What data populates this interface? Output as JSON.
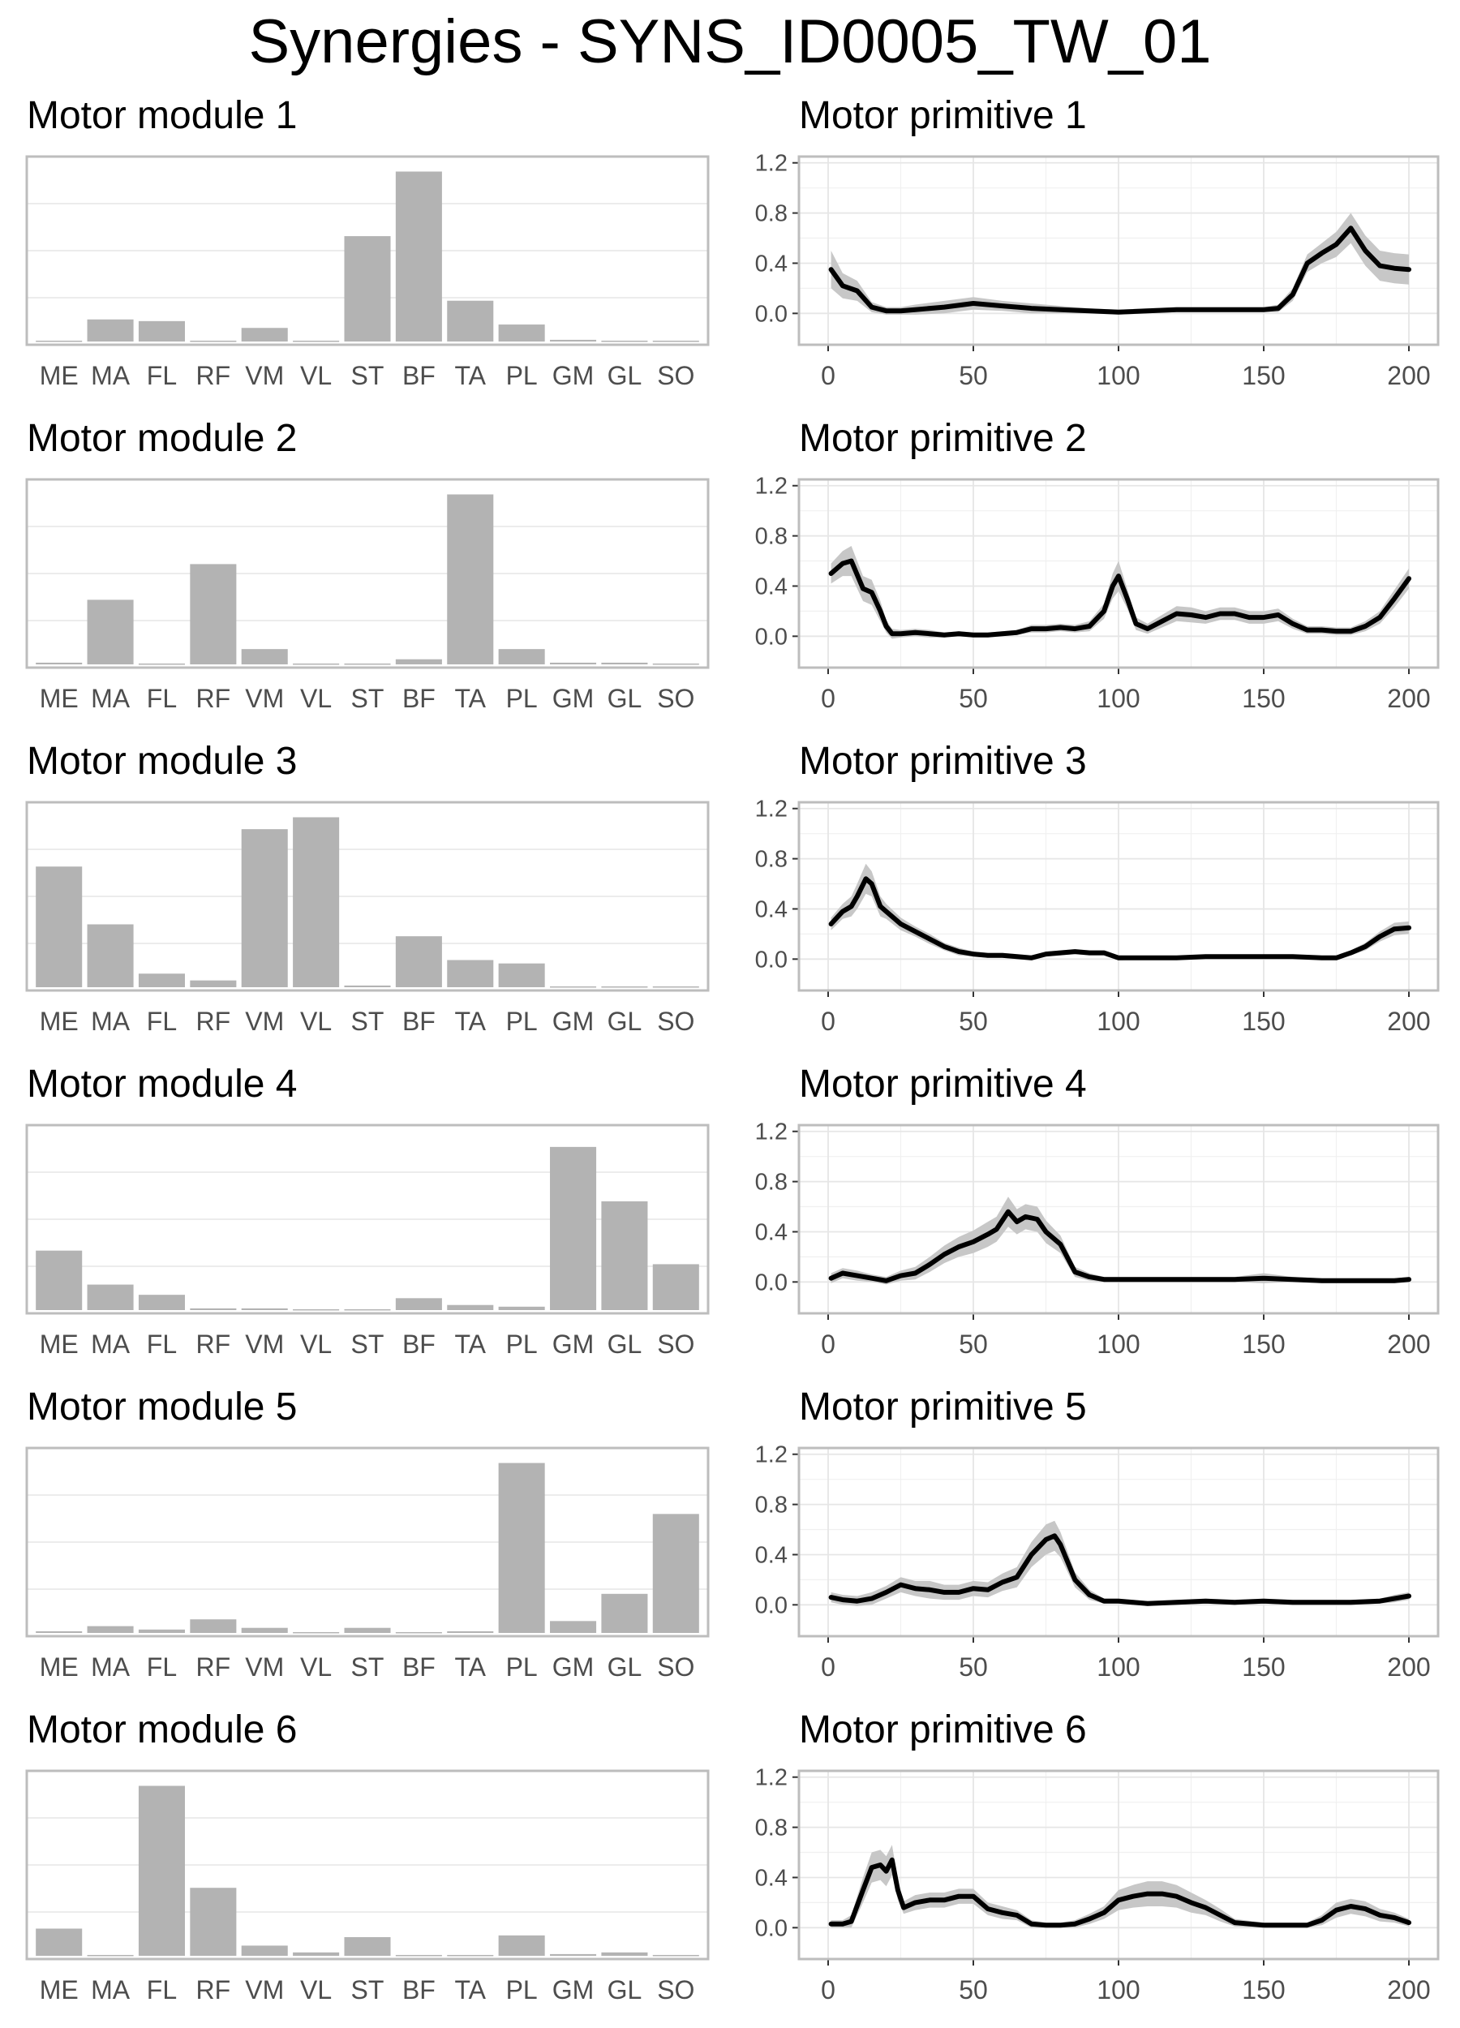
{
  "title": "Synergies - SYNS_ID0005_TW_01",
  "chart_data": [
    {
      "type": "bar",
      "title": "Motor module 1",
      "categories": [
        "ME",
        "MA",
        "FL",
        "RF",
        "VM",
        "VL",
        "ST",
        "BF",
        "TA",
        "PL",
        "GM",
        "GL",
        "SO"
      ],
      "values": [
        0.005,
        0.13,
        0.12,
        0.005,
        0.08,
        0.005,
        0.62,
        1.0,
        0.24,
        0.1,
        0.01,
        0.005,
        0.005
      ],
      "ylim": [
        0,
        1.05
      ]
    },
    {
      "type": "line",
      "title": "Motor primitive 1",
      "x": [
        1,
        5,
        10,
        15,
        20,
        25,
        30,
        40,
        50,
        60,
        70,
        80,
        90,
        100,
        110,
        120,
        130,
        140,
        150,
        155,
        160,
        165,
        170,
        175,
        180,
        185,
        190,
        195,
        200
      ],
      "mean": [
        0.35,
        0.22,
        0.18,
        0.05,
        0.02,
        0.02,
        0.03,
        0.05,
        0.08,
        0.06,
        0.04,
        0.03,
        0.02,
        0.01,
        0.02,
        0.03,
        0.03,
        0.03,
        0.03,
        0.04,
        0.15,
        0.4,
        0.48,
        0.55,
        0.68,
        0.5,
        0.38,
        0.36,
        0.35
      ],
      "sd": [
        0.15,
        0.1,
        0.08,
        0.04,
        0.03,
        0.03,
        0.04,
        0.05,
        0.05,
        0.04,
        0.04,
        0.03,
        0.02,
        0.02,
        0.02,
        0.02,
        0.02,
        0.02,
        0.02,
        0.03,
        0.05,
        0.07,
        0.08,
        0.1,
        0.12,
        0.12,
        0.12,
        0.12,
        0.12
      ],
      "ylim": [
        -0.25,
        1.25
      ],
      "yticks": [
        "0.0",
        "0.4",
        "0.8",
        "1.2"
      ],
      "xticks": [
        "0",
        "50",
        "100",
        "150",
        "200"
      ]
    },
    {
      "type": "bar",
      "title": "Motor module 2",
      "categories": [
        "ME",
        "MA",
        "FL",
        "RF",
        "VM",
        "VL",
        "ST",
        "BF",
        "TA",
        "PL",
        "GM",
        "GL",
        "SO"
      ],
      "values": [
        0.01,
        0.38,
        0.005,
        0.59,
        0.09,
        0.005,
        0.005,
        0.03,
        1.0,
        0.09,
        0.01,
        0.01,
        0.005
      ],
      "ylim": [
        0,
        1.05
      ]
    },
    {
      "type": "line",
      "title": "Motor primitive 2",
      "x": [
        1,
        5,
        8,
        12,
        15,
        18,
        20,
        22,
        25,
        30,
        35,
        40,
        45,
        50,
        55,
        60,
        65,
        70,
        75,
        80,
        85,
        90,
        95,
        98,
        100,
        103,
        106,
        110,
        115,
        120,
        125,
        130,
        135,
        140,
        145,
        150,
        155,
        160,
        165,
        170,
        175,
        180,
        185,
        190,
        195,
        200
      ],
      "mean": [
        0.5,
        0.58,
        0.6,
        0.38,
        0.35,
        0.2,
        0.08,
        0.02,
        0.02,
        0.03,
        0.02,
        0.01,
        0.02,
        0.01,
        0.01,
        0.02,
        0.03,
        0.06,
        0.06,
        0.07,
        0.06,
        0.08,
        0.2,
        0.4,
        0.48,
        0.3,
        0.1,
        0.06,
        0.12,
        0.18,
        0.17,
        0.15,
        0.18,
        0.18,
        0.15,
        0.15,
        0.17,
        0.1,
        0.05,
        0.05,
        0.04,
        0.04,
        0.08,
        0.15,
        0.3,
        0.46
      ],
      "sd": [
        0.08,
        0.1,
        0.12,
        0.1,
        0.1,
        0.08,
        0.05,
        0.04,
        0.03,
        0.03,
        0.03,
        0.02,
        0.02,
        0.02,
        0.02,
        0.02,
        0.02,
        0.03,
        0.03,
        0.03,
        0.03,
        0.04,
        0.06,
        0.1,
        0.12,
        0.08,
        0.05,
        0.04,
        0.05,
        0.06,
        0.06,
        0.05,
        0.05,
        0.05,
        0.05,
        0.05,
        0.05,
        0.04,
        0.03,
        0.03,
        0.03,
        0.03,
        0.04,
        0.05,
        0.07,
        0.08
      ],
      "ylim": [
        -0.25,
        1.25
      ],
      "yticks": [
        "0.0",
        "0.4",
        "0.8",
        "1.2"
      ],
      "xticks": [
        "0",
        "50",
        "100",
        "150",
        "200"
      ]
    },
    {
      "type": "bar",
      "title": "Motor module 3",
      "categories": [
        "ME",
        "MA",
        "FL",
        "RF",
        "VM",
        "VL",
        "ST",
        "BF",
        "TA",
        "PL",
        "GM",
        "GL",
        "SO"
      ],
      "values": [
        0.71,
        0.37,
        0.08,
        0.04,
        0.93,
        1.0,
        0.01,
        0.3,
        0.16,
        0.14,
        0.005,
        0.005,
        0.005
      ],
      "ylim": [
        0,
        1.05
      ]
    },
    {
      "type": "line",
      "title": "Motor primitive 3",
      "x": [
        1,
        5,
        8,
        10,
        13,
        15,
        18,
        20,
        25,
        30,
        35,
        40,
        45,
        50,
        55,
        60,
        65,
        70,
        75,
        80,
        85,
        90,
        95,
        100,
        110,
        120,
        130,
        140,
        150,
        160,
        170,
        175,
        180,
        185,
        190,
        195,
        200
      ],
      "mean": [
        0.28,
        0.38,
        0.42,
        0.5,
        0.64,
        0.6,
        0.42,
        0.38,
        0.28,
        0.22,
        0.16,
        0.1,
        0.06,
        0.04,
        0.03,
        0.03,
        0.02,
        0.01,
        0.04,
        0.05,
        0.06,
        0.05,
        0.05,
        0.01,
        0.01,
        0.01,
        0.02,
        0.02,
        0.02,
        0.02,
        0.01,
        0.01,
        0.05,
        0.1,
        0.18,
        0.24,
        0.25
      ],
      "sd": [
        0.05,
        0.06,
        0.08,
        0.1,
        0.12,
        0.1,
        0.08,
        0.06,
        0.05,
        0.04,
        0.04,
        0.03,
        0.03,
        0.02,
        0.02,
        0.02,
        0.02,
        0.02,
        0.02,
        0.02,
        0.02,
        0.02,
        0.02,
        0.02,
        0.01,
        0.01,
        0.01,
        0.01,
        0.01,
        0.01,
        0.01,
        0.01,
        0.02,
        0.03,
        0.04,
        0.05,
        0.05
      ],
      "ylim": [
        -0.25,
        1.25
      ],
      "yticks": [
        "0.0",
        "0.4",
        "0.8",
        "1.2"
      ],
      "xticks": [
        "0",
        "50",
        "100",
        "150",
        "200"
      ]
    },
    {
      "type": "bar",
      "title": "Motor module 4",
      "categories": [
        "ME",
        "MA",
        "FL",
        "RF",
        "VM",
        "VL",
        "ST",
        "BF",
        "TA",
        "PL",
        "GM",
        "GL",
        "SO"
      ],
      "values": [
        0.35,
        0.15,
        0.09,
        0.01,
        0.01,
        0.005,
        0.005,
        0.07,
        0.03,
        0.02,
        0.96,
        0.64,
        0.27
      ],
      "ylim": [
        0,
        1.05
      ]
    },
    {
      "type": "line",
      "title": "Motor primitive 4",
      "x": [
        1,
        5,
        10,
        15,
        20,
        25,
        30,
        35,
        40,
        45,
        50,
        55,
        58,
        62,
        65,
        68,
        72,
        75,
        80,
        85,
        90,
        95,
        100,
        110,
        120,
        130,
        140,
        150,
        160,
        170,
        180,
        190,
        195,
        200
      ],
      "mean": [
        0.03,
        0.07,
        0.05,
        0.03,
        0.01,
        0.05,
        0.07,
        0.14,
        0.22,
        0.28,
        0.32,
        0.38,
        0.42,
        0.56,
        0.48,
        0.52,
        0.5,
        0.4,
        0.3,
        0.08,
        0.04,
        0.02,
        0.02,
        0.02,
        0.02,
        0.02,
        0.02,
        0.03,
        0.02,
        0.01,
        0.01,
        0.01,
        0.01,
        0.02
      ],
      "sd": [
        0.04,
        0.04,
        0.04,
        0.03,
        0.03,
        0.04,
        0.05,
        0.06,
        0.07,
        0.08,
        0.09,
        0.1,
        0.1,
        0.12,
        0.1,
        0.1,
        0.1,
        0.09,
        0.07,
        0.04,
        0.03,
        0.02,
        0.02,
        0.02,
        0.02,
        0.02,
        0.02,
        0.04,
        0.02,
        0.02,
        0.02,
        0.02,
        0.02,
        0.02
      ],
      "ylim": [
        -0.25,
        1.25
      ],
      "yticks": [
        "0.0",
        "0.4",
        "0.8",
        "1.2"
      ],
      "xticks": [
        "0",
        "50",
        "100",
        "150",
        "200"
      ]
    },
    {
      "type": "bar",
      "title": "Motor module 5",
      "categories": [
        "ME",
        "MA",
        "FL",
        "RF",
        "VM",
        "VL",
        "ST",
        "BF",
        "TA",
        "PL",
        "GM",
        "GL",
        "SO"
      ],
      "values": [
        0.01,
        0.04,
        0.02,
        0.08,
        0.03,
        0.005,
        0.03,
        0.005,
        0.01,
        1.0,
        0.07,
        0.23,
        0.7
      ],
      "ylim": [
        0,
        1.05
      ]
    },
    {
      "type": "line",
      "title": "Motor primitive 5",
      "x": [
        1,
        5,
        10,
        15,
        20,
        25,
        30,
        35,
        40,
        45,
        50,
        55,
        60,
        65,
        70,
        75,
        78,
        80,
        85,
        90,
        95,
        100,
        105,
        110,
        120,
        130,
        140,
        150,
        160,
        170,
        180,
        190,
        195,
        200
      ],
      "mean": [
        0.06,
        0.04,
        0.03,
        0.05,
        0.1,
        0.16,
        0.13,
        0.12,
        0.1,
        0.1,
        0.13,
        0.12,
        0.18,
        0.22,
        0.4,
        0.52,
        0.55,
        0.48,
        0.2,
        0.08,
        0.03,
        0.03,
        0.02,
        0.01,
        0.02,
        0.03,
        0.02,
        0.03,
        0.02,
        0.02,
        0.02,
        0.03,
        0.05,
        0.07
      ],
      "sd": [
        0.04,
        0.04,
        0.04,
        0.05,
        0.05,
        0.06,
        0.06,
        0.07,
        0.06,
        0.06,
        0.06,
        0.06,
        0.07,
        0.08,
        0.1,
        0.12,
        0.12,
        0.1,
        0.06,
        0.04,
        0.02,
        0.02,
        0.02,
        0.02,
        0.02,
        0.02,
        0.02,
        0.02,
        0.02,
        0.02,
        0.02,
        0.02,
        0.03,
        0.03
      ],
      "ylim": [
        -0.25,
        1.25
      ],
      "yticks": [
        "0.0",
        "0.4",
        "0.8",
        "1.2"
      ],
      "xticks": [
        "0",
        "50",
        "100",
        "150",
        "200"
      ]
    },
    {
      "type": "bar",
      "title": "Motor module 6",
      "categories": [
        "ME",
        "MA",
        "FL",
        "RF",
        "VM",
        "VL",
        "ST",
        "BF",
        "TA",
        "PL",
        "GM",
        "GL",
        "SO"
      ],
      "values": [
        0.16,
        0.005,
        1.0,
        0.4,
        0.06,
        0.02,
        0.11,
        0.005,
        0.005,
        0.12,
        0.01,
        0.02,
        0.005
      ],
      "ylim": [
        0,
        1.05
      ]
    },
    {
      "type": "line",
      "title": "Motor primitive 6",
      "x": [
        1,
        5,
        8,
        12,
        15,
        18,
        20,
        22,
        24,
        26,
        30,
        35,
        40,
        45,
        50,
        55,
        60,
        65,
        70,
        75,
        80,
        85,
        90,
        95,
        100,
        105,
        110,
        115,
        120,
        125,
        130,
        135,
        140,
        150,
        160,
        165,
        170,
        175,
        180,
        185,
        190,
        195,
        200
      ],
      "mean": [
        0.03,
        0.03,
        0.05,
        0.3,
        0.48,
        0.5,
        0.45,
        0.54,
        0.3,
        0.16,
        0.2,
        0.22,
        0.22,
        0.25,
        0.25,
        0.15,
        0.12,
        0.1,
        0.03,
        0.02,
        0.02,
        0.03,
        0.07,
        0.12,
        0.22,
        0.25,
        0.27,
        0.27,
        0.25,
        0.2,
        0.16,
        0.1,
        0.04,
        0.02,
        0.02,
        0.02,
        0.06,
        0.14,
        0.17,
        0.15,
        0.1,
        0.08,
        0.04
      ],
      "sd": [
        0.03,
        0.03,
        0.05,
        0.1,
        0.12,
        0.12,
        0.12,
        0.12,
        0.08,
        0.05,
        0.06,
        0.06,
        0.06,
        0.06,
        0.06,
        0.05,
        0.05,
        0.04,
        0.03,
        0.02,
        0.02,
        0.03,
        0.04,
        0.05,
        0.08,
        0.09,
        0.1,
        0.1,
        0.09,
        0.08,
        0.06,
        0.05,
        0.03,
        0.02,
        0.02,
        0.02,
        0.04,
        0.06,
        0.06,
        0.06,
        0.05,
        0.04,
        0.03
      ],
      "ylim": [
        -0.25,
        1.25
      ],
      "yticks": [
        "0.0",
        "0.4",
        "0.8",
        "1.2"
      ],
      "xticks": [
        "0",
        "50",
        "100",
        "150",
        "200"
      ]
    }
  ],
  "colors": {
    "bar": "#b3b3b3",
    "band": "#c7c7c7",
    "line": "#000000",
    "panel_border": "#bdbdbd",
    "grid": "#e6e6e6",
    "tick_text": "#4d4d4d"
  }
}
